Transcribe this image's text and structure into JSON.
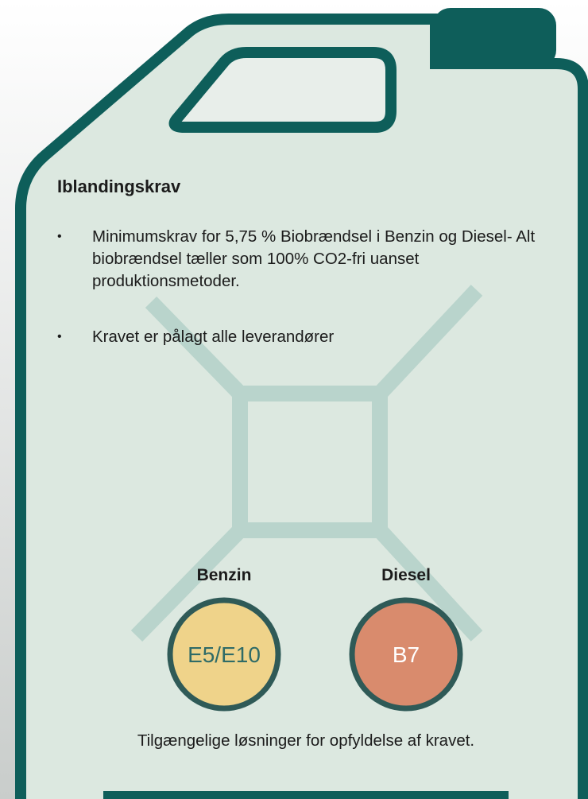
{
  "title": "Iblandingskrav",
  "bullets": [
    "Minimumskrav for 5,75 % Biobrændsel i Benzin og Diesel- Alt biobrændsel tæller som 100% CO2-fri uanset produktionsmetoder.",
    "Kravet er pålagt alle leverandører"
  ],
  "fuels": [
    {
      "name": "Benzin",
      "label": "E5/E10",
      "color": "#efd38a"
    },
    {
      "name": "Diesel",
      "label": "B7",
      "color": "#d98b6d"
    }
  ],
  "footer": "Tilgængelige løsninger for opfyldelse af kravet."
}
